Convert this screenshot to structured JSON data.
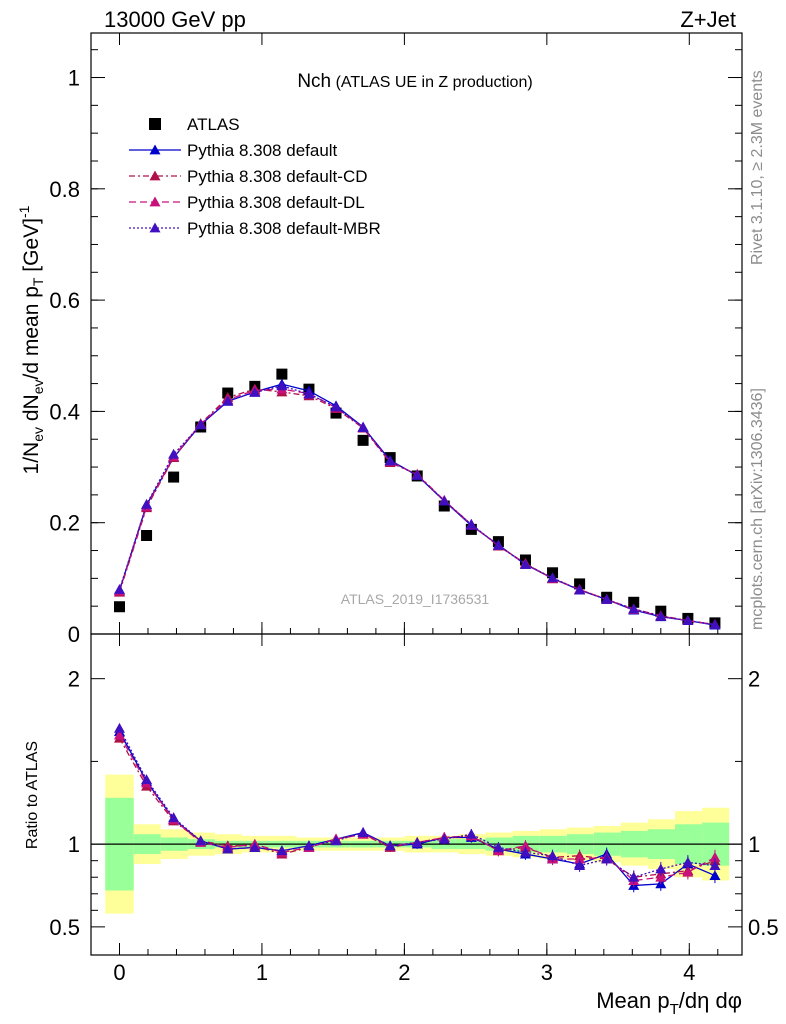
{
  "header": {
    "left": "13000 GeV pp",
    "right": "Z+Jet"
  },
  "side_labels": {
    "rivet": "Rivet 3.1.10, ≥ 2.3M events",
    "mcplots": "mcplots.cern.ch [arXiv:1306.3436]"
  },
  "colors": {
    "data": "#000000",
    "default": "#0000cc",
    "cd": "#b0104a",
    "dl": "#c8107a",
    "mbr": "#4010c0",
    "band_inner": "#99ff99",
    "band_outer": "#ffff99"
  },
  "chart_data": {
    "type": "line",
    "title": "Nch",
    "subtitle": "(ATLAS UE in Z production)",
    "watermark": "ATLAS_2019_I1736531",
    "xlabel": "Mean p_T/dη dφ",
    "xlim": [
      -0.2,
      4.37
    ],
    "x_ticks": [
      "0",
      "1",
      "2",
      "3",
      "4"
    ],
    "top": {
      "ylabel": "1/N_ev dN_ev/d mean p_T [GeV]^-1",
      "ylim": [
        0,
        1.08
      ],
      "y_ticks": [
        "0",
        "0.2",
        "0.4",
        "0.6",
        "0.8",
        "1"
      ]
    },
    "ratio": {
      "ylabel": "Ratio to ATLAS",
      "ylim": [
        0.33,
        2.27
      ],
      "y_ticks": [
        "0.5",
        "1",
        "2"
      ]
    },
    "x": [
      0.0,
      0.19,
      0.38,
      0.57,
      0.76,
      0.95,
      1.14,
      1.33,
      1.52,
      1.71,
      1.9,
      2.09,
      2.28,
      2.47,
      2.66,
      2.85,
      3.04,
      3.23,
      3.42,
      3.61,
      3.8,
      3.99,
      4.18
    ],
    "series": [
      {
        "name": "ATLAS",
        "values": [
          0.049,
          0.177,
          0.282,
          0.372,
          0.433,
          0.445,
          0.467,
          0.44,
          0.397,
          0.348,
          0.317,
          0.284,
          0.23,
          0.188,
          0.166,
          0.133,
          0.11,
          0.09,
          0.066,
          0.057,
          0.041,
          0.028,
          0.02
        ]
      },
      {
        "name": "Pythia 8.308 default",
        "values": [
          0.078,
          0.232,
          0.317,
          0.376,
          0.418,
          0.435,
          0.449,
          0.437,
          0.41,
          0.372,
          0.312,
          0.285,
          0.239,
          0.195,
          0.16,
          0.125,
          0.1,
          0.079,
          0.062,
          0.043,
          0.031,
          0.024,
          0.016
        ],
        "ratio": [
          1.68,
          1.38,
          1.15,
          1.02,
          0.97,
          0.98,
          0.96,
          0.99,
          1.03,
          1.07,
          0.99,
          1.0,
          1.04,
          1.04,
          0.97,
          0.94,
          0.91,
          0.88,
          0.94,
          0.75,
          0.76,
          0.88,
          0.81
        ]
      },
      {
        "name": "Pythia 8.308 default-CD",
        "values": [
          0.075,
          0.227,
          0.317,
          0.378,
          0.425,
          0.44,
          0.435,
          0.428,
          0.405,
          0.37,
          0.308,
          0.287,
          0.24,
          0.197,
          0.158,
          0.127,
          0.099,
          0.08,
          0.062,
          0.045,
          0.033,
          0.024,
          0.017
        ],
        "ratio": [
          1.64,
          1.35,
          1.14,
          1.02,
          0.99,
          0.99,
          0.94,
          0.98,
          1.03,
          1.06,
          0.98,
          1.01,
          1.04,
          1.05,
          0.96,
          0.98,
          0.92,
          0.93,
          0.91,
          0.8,
          0.82,
          0.84,
          0.9
        ]
      },
      {
        "name": "Pythia 8.308 default-DL",
        "values": [
          0.077,
          0.229,
          0.319,
          0.377,
          0.421,
          0.438,
          0.44,
          0.432,
          0.407,
          0.371,
          0.31,
          0.286,
          0.24,
          0.196,
          0.159,
          0.126,
          0.1,
          0.08,
          0.062,
          0.044,
          0.032,
          0.024,
          0.017
        ],
        "ratio": [
          1.66,
          1.37,
          1.15,
          1.01,
          0.98,
          1.0,
          0.95,
          0.98,
          1.03,
          1.06,
          0.99,
          1.01,
          1.04,
          1.05,
          0.96,
          0.99,
          0.91,
          0.91,
          0.92,
          0.78,
          0.8,
          0.83,
          0.92
        ]
      },
      {
        "name": "Pythia 8.308 default-MBR",
        "values": [
          0.08,
          0.233,
          0.323,
          0.376,
          0.419,
          0.434,
          0.446,
          0.431,
          0.408,
          0.371,
          0.311,
          0.285,
          0.239,
          0.197,
          0.159,
          0.125,
          0.101,
          0.079,
          0.062,
          0.045,
          0.032,
          0.024,
          0.017
        ],
        "ratio": [
          1.7,
          1.39,
          1.16,
          1.02,
          0.97,
          0.98,
          0.96,
          0.99,
          1.02,
          1.07,
          0.99,
          1.01,
          1.03,
          1.06,
          0.98,
          0.95,
          0.93,
          0.87,
          0.91,
          0.8,
          0.85,
          0.89,
          0.87
        ]
      }
    ],
    "ratio_band": {
      "bins": [
        -0.1,
        0.1,
        0.29,
        0.48,
        0.67,
        0.86,
        1.05,
        1.24,
        1.43,
        1.62,
        1.81,
        2.0,
        2.19,
        2.38,
        2.57,
        2.76,
        2.95,
        3.14,
        3.33,
        3.52,
        3.71,
        3.9,
        4.09,
        4.28
      ],
      "inner_lo": [
        0.72,
        0.94,
        0.96,
        0.97,
        0.98,
        0.98,
        0.98,
        0.98,
        0.98,
        0.98,
        0.98,
        0.98,
        0.97,
        0.97,
        0.96,
        0.95,
        0.95,
        0.94,
        0.93,
        0.92,
        0.91,
        0.88,
        0.87
      ],
      "inner_hi": [
        1.28,
        1.06,
        1.04,
        1.03,
        1.02,
        1.02,
        1.02,
        1.02,
        1.02,
        1.02,
        1.02,
        1.02,
        1.03,
        1.03,
        1.04,
        1.05,
        1.05,
        1.06,
        1.07,
        1.08,
        1.09,
        1.12,
        1.13
      ],
      "outer_lo": [
        0.58,
        0.88,
        0.91,
        0.93,
        0.94,
        0.95,
        0.95,
        0.96,
        0.96,
        0.96,
        0.96,
        0.95,
        0.95,
        0.94,
        0.93,
        0.92,
        0.91,
        0.9,
        0.89,
        0.87,
        0.85,
        0.8,
        0.78
      ],
      "outer_hi": [
        1.42,
        1.12,
        1.09,
        1.07,
        1.06,
        1.05,
        1.05,
        1.04,
        1.04,
        1.04,
        1.04,
        1.05,
        1.05,
        1.06,
        1.07,
        1.08,
        1.09,
        1.1,
        1.11,
        1.13,
        1.15,
        1.2,
        1.22
      ]
    }
  }
}
